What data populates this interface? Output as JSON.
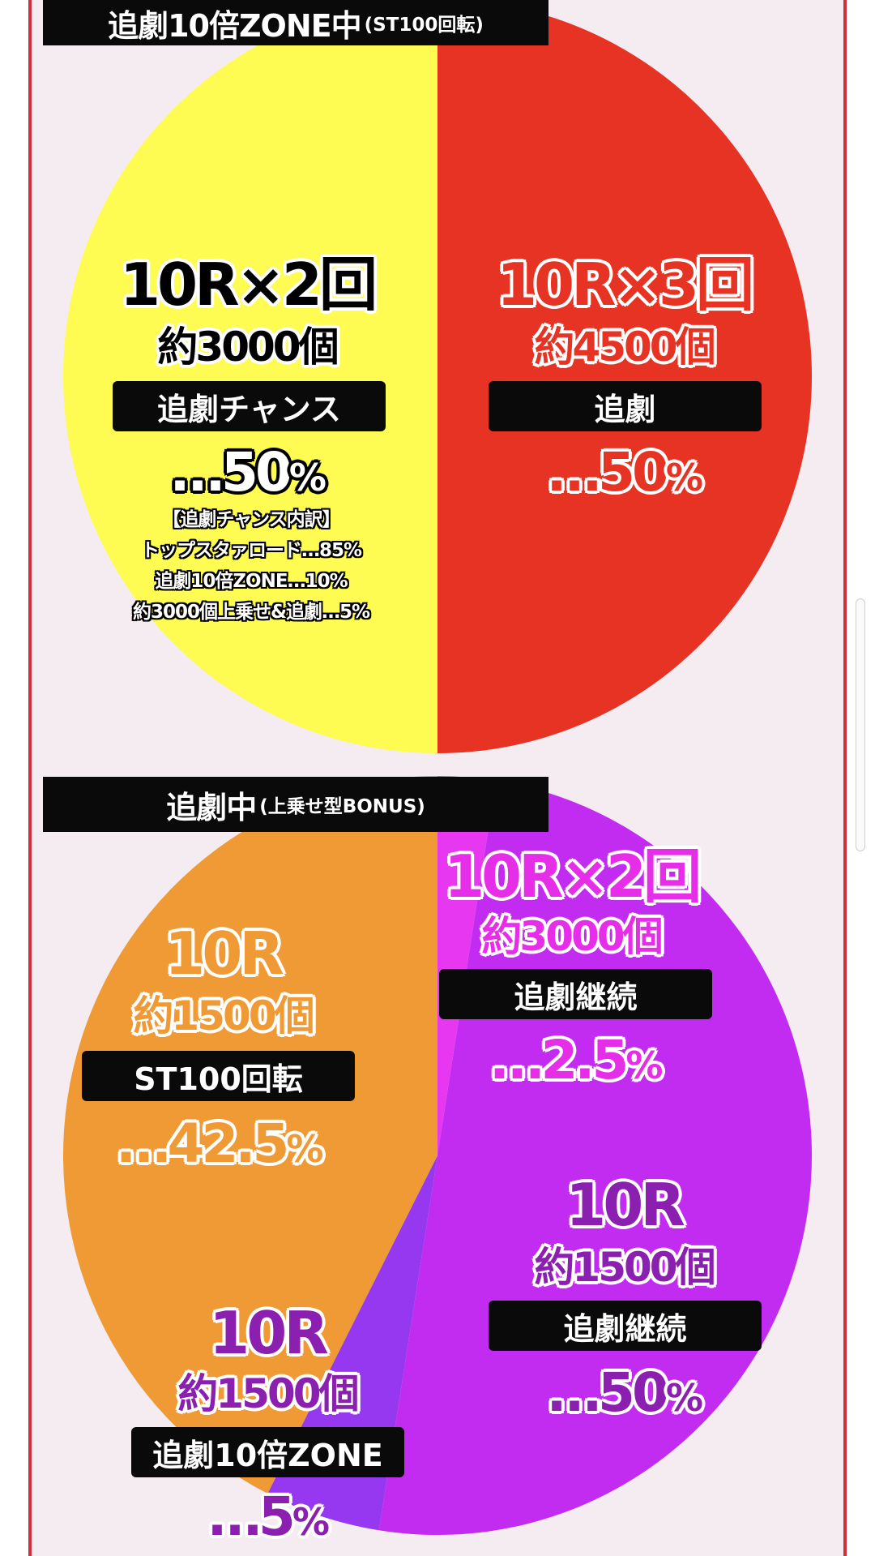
{
  "chart_data": [
    {
      "type": "pie",
      "title": "追劇10倍ZONE中",
      "subtitle": "(ST100回転)",
      "slices": [
        {
          "rounds": "10R×3回",
          "balls": "約4500個",
          "name": "追劇",
          "percent_label": "…50",
          "unit": "%",
          "value": 50,
          "color": "#e63323"
        },
        {
          "rounds": "10R×2回",
          "balls": "約3000個",
          "name": "追劇チャンス",
          "percent_label": "…50",
          "unit": "%",
          "value": 50,
          "color": "#fefb52",
          "breakdown_title": "【追劇チャンス内訳】",
          "breakdown": [
            "トップスタァロード…85%",
            "追劇10倍ZONE…10%",
            "約3000個上乗せ&追劇…5%"
          ]
        }
      ]
    },
    {
      "type": "pie",
      "title": "追劇中",
      "subtitle": "(上乗せ型BONUS)",
      "slices": [
        {
          "rounds": "10R×2回",
          "balls": "約3000個",
          "name": "追劇継続",
          "percent_label": "…2.5",
          "unit": "%",
          "value": 2.5,
          "color": "#e837f0"
        },
        {
          "rounds": "10R",
          "balls": "約1500個",
          "name": "追劇継続",
          "percent_label": "…50",
          "unit": "%",
          "value": 50,
          "color": "#c22bf0"
        },
        {
          "rounds": "10R",
          "balls": "約1500個",
          "name": "追劇10倍ZONE",
          "percent_label": "…5",
          "unit": "%",
          "value": 5,
          "color": "#9538f0"
        },
        {
          "rounds": "10R",
          "balls": "約1500個",
          "name": "ST100回転",
          "percent_label": "…42.5",
          "unit": "%",
          "value": 42.5,
          "color": "#ef9a35"
        }
      ]
    }
  ]
}
